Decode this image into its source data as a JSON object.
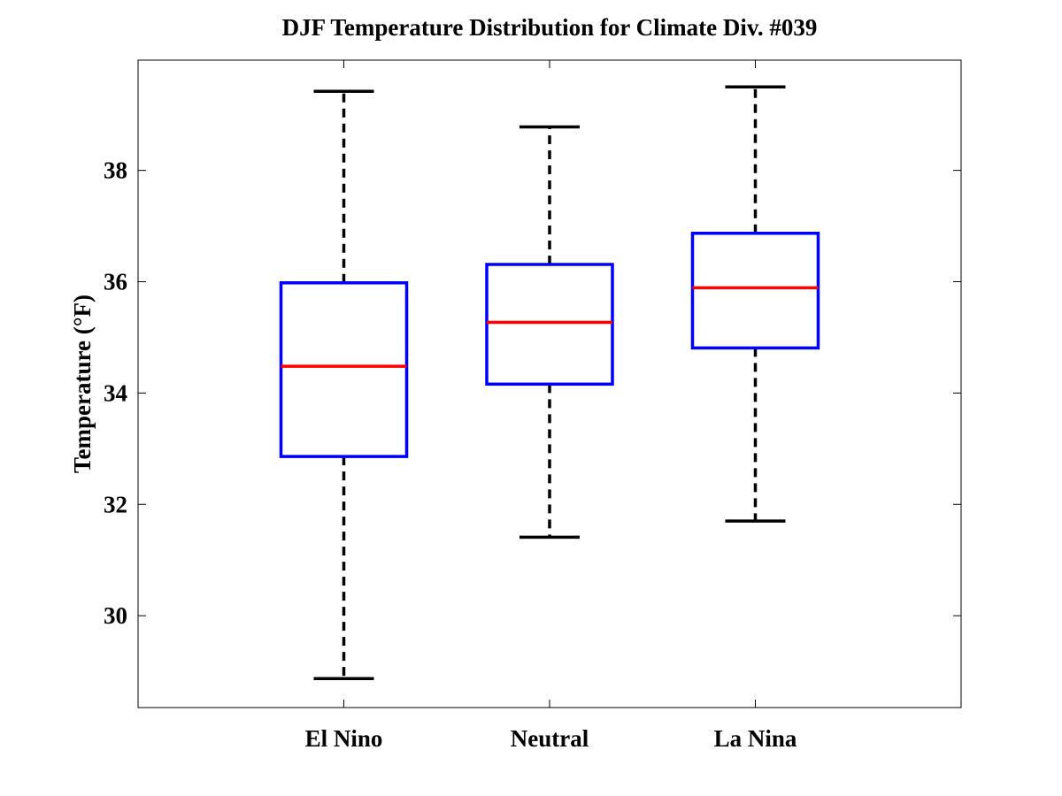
{
  "chart_data": {
    "type": "box",
    "title": "DJF Temperature Distribution for Climate Div. #039",
    "xlabel": "",
    "ylabel": "Temperature (°F)",
    "categories": [
      "El Nino",
      "Neutral",
      "La Nina"
    ],
    "ylim": [
      28.35,
      39.98
    ],
    "yticks": [
      30,
      32,
      34,
      36,
      38
    ],
    "ytick_labels": [
      "30",
      "32",
      "34",
      "36",
      "38"
    ],
    "grid": false,
    "boxes": [
      {
        "category": "El Nino",
        "whisker_low": 28.87,
        "q1": 32.86,
        "median": 34.48,
        "q3": 35.98,
        "whisker_high": 39.42
      },
      {
        "category": "Neutral",
        "whisker_low": 31.41,
        "q1": 34.16,
        "median": 35.27,
        "q3": 36.31,
        "whisker_high": 38.78
      },
      {
        "category": "La Nina",
        "whisker_low": 31.7,
        "q1": 34.81,
        "median": 35.89,
        "q3": 36.87,
        "whisker_high": 39.5
      }
    ],
    "colors": {
      "box": "#0000ff",
      "median": "#ff0000",
      "whisker": "#000000",
      "axes": "#000000"
    }
  }
}
